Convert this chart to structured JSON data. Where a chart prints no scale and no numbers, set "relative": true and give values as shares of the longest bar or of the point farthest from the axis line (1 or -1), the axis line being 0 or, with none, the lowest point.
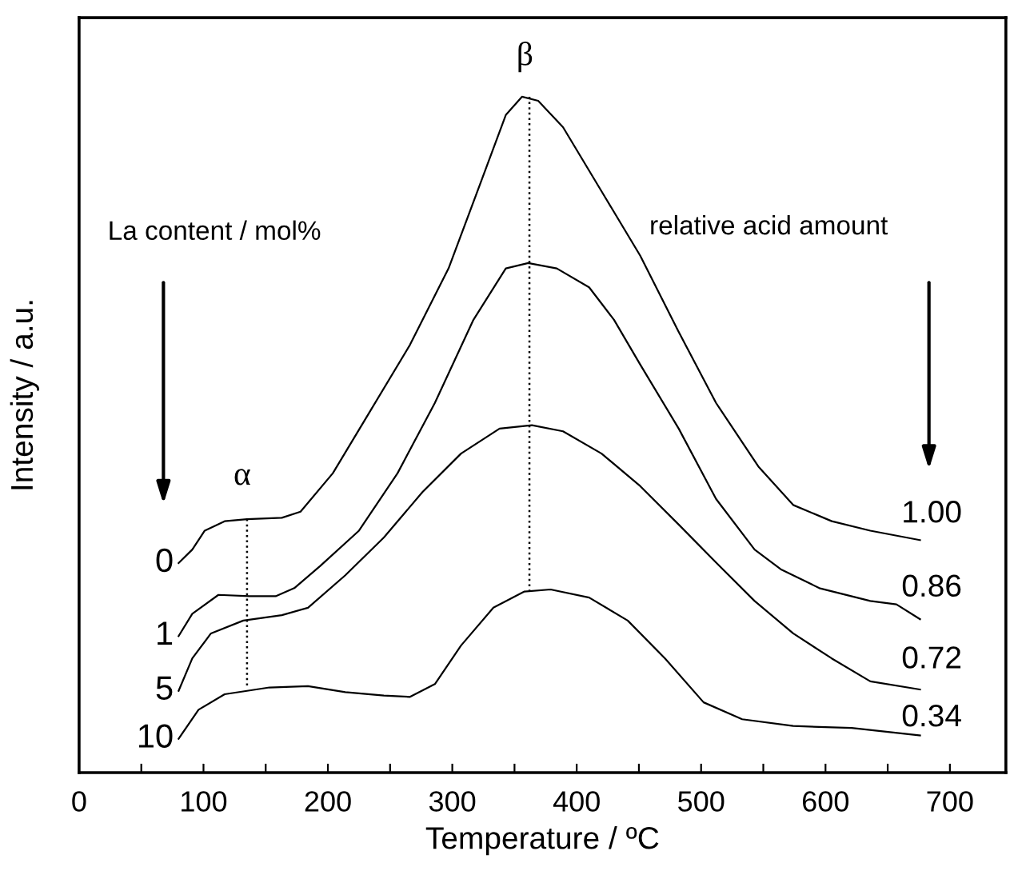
{
  "chart_data": {
    "type": "line",
    "relative": true,
    "xlabel": "Temperature / ºC",
    "ylabel": "Intensity / a.u.",
    "xlim": [
      0,
      745
    ],
    "xticks": [
      0,
      {
        "value": 50,
        "label": null
      },
      100,
      {
        "value": 150,
        "label": null
      },
      200,
      {
        "value": 250,
        "label": null
      },
      300,
      {
        "value": 350,
        "label": null
      },
      400,
      {
        "value": 450,
        "label": null
      },
      500,
      {
        "value": 550,
        "label": null
      },
      600,
      {
        "value": 650,
        "label": null
      },
      700
    ],
    "tick_labels": "x",
    "grid": false,
    "legend": false,
    "marker": "none",
    "line_style": "solid",
    "series": [
      {
        "name": "0",
        "color": "#000000",
        "x": [
          80,
          91,
          101,
          117,
          135,
          163,
          178,
          204,
          235,
          266,
          297,
          322,
          343,
          356,
          369,
          389,
          420,
          451,
          482,
          512,
          546,
          574,
          605,
          636,
          676
        ],
        "values": [
          0.31,
          0.33,
          0.358,
          0.372,
          0.375,
          0.377,
          0.386,
          0.443,
          0.538,
          0.633,
          0.746,
          0.869,
          0.973,
          1.0,
          0.994,
          0.955,
          0.86,
          0.765,
          0.652,
          0.547,
          0.453,
          0.396,
          0.372,
          0.358,
          0.344
        ]
      },
      {
        "name": "1",
        "color": "#000000",
        "x": [
          80,
          91,
          112,
          137,
          158,
          173,
          194,
          225,
          256,
          286,
          317,
          343,
          361,
          384,
          410,
          430,
          451,
          482,
          512,
          543,
          564,
          595,
          636,
          657,
          676
        ],
        "values": [
          0.202,
          0.235,
          0.263,
          0.261,
          0.261,
          0.273,
          0.306,
          0.358,
          0.443,
          0.547,
          0.67,
          0.746,
          0.754,
          0.746,
          0.718,
          0.67,
          0.604,
          0.509,
          0.405,
          0.33,
          0.301,
          0.273,
          0.254,
          0.249,
          0.227
        ]
      },
      {
        "name": "5",
        "color": "#000000",
        "x": [
          80,
          91,
          106,
          132,
          163,
          184,
          214,
          245,
          276,
          307,
          338,
          364,
          389,
          420,
          451,
          482,
          512,
          543,
          574,
          605,
          636,
          676
        ],
        "values": [
          0.121,
          0.169,
          0.206,
          0.225,
          0.233,
          0.244,
          0.292,
          0.348,
          0.415,
          0.472,
          0.509,
          0.514,
          0.505,
          0.472,
          0.424,
          0.367,
          0.311,
          0.254,
          0.206,
          0.169,
          0.135,
          0.123
        ]
      },
      {
        "name": "10",
        "color": "#000000",
        "x": [
          80,
          96,
          117,
          153,
          184,
          214,
          245,
          266,
          286,
          307,
          333,
          358,
          379,
          410,
          441,
          471,
          502,
          533,
          574,
          621,
          676
        ],
        "values": [
          0.05,
          0.093,
          0.116,
          0.126,
          0.128,
          0.119,
          0.114,
          0.112,
          0.131,
          0.188,
          0.244,
          0.268,
          0.271,
          0.259,
          0.225,
          0.169,
          0.104,
          0.079,
          0.069,
          0.066,
          0.055
        ]
      },
      {
        "color": "#000000",
        "line_style": "dotted",
        "x": [
          135,
          135
        ],
        "values": [
          0.375,
          0.126
        ]
      },
      {
        "color": "#000000",
        "line_style": "dotted",
        "x": [
          362,
          362
        ],
        "values": [
          1.0,
          0.27
        ]
      }
    ],
    "annotations": [
      "La content / mol%",
      "relative acid amount",
      "α",
      "β",
      "1.00",
      "0.86",
      "0.72",
      "0.34"
    ]
  }
}
